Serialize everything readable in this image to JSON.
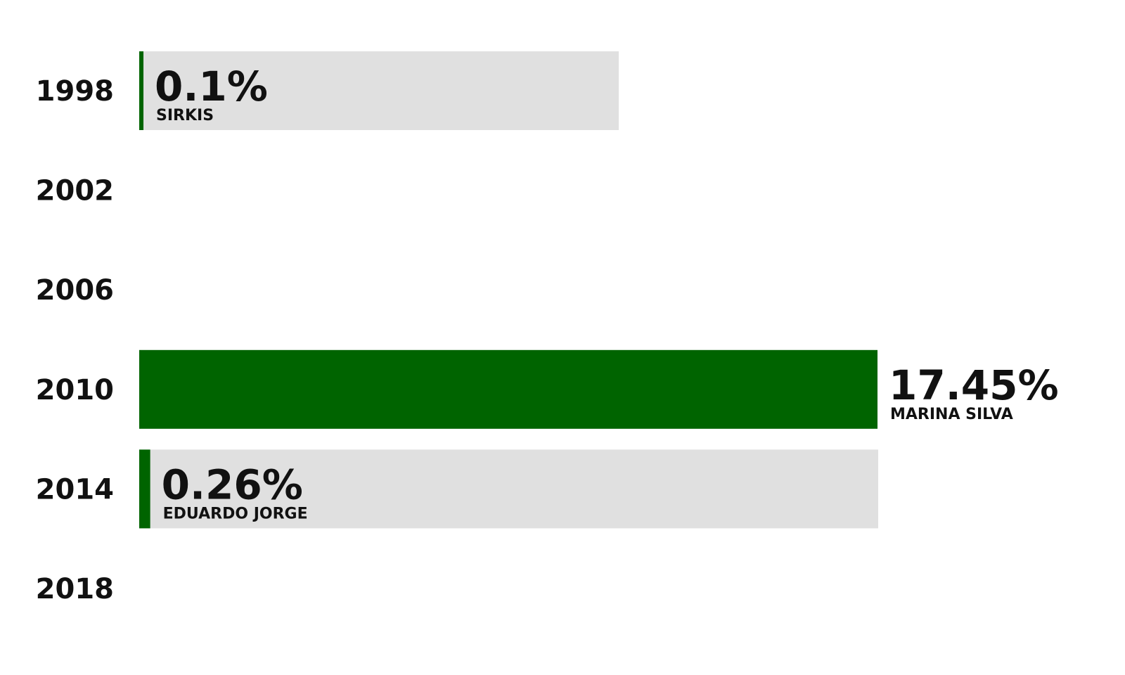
{
  "chart_data": {
    "type": "bar",
    "orientation": "horizontal",
    "categories": [
      "1998",
      "2002",
      "2006",
      "2010",
      "2014",
      "2018"
    ],
    "series": [
      {
        "values": [
          0.1,
          null,
          null,
          17.45,
          0.26,
          null
        ],
        "value_labels": [
          "0.1%",
          "",
          "",
          "17.45%",
          "0.26%",
          ""
        ],
        "candidate_labels": [
          "SIRKIS",
          "",
          "",
          "MARINA SILVA",
          "EDUARDO JORGE",
          ""
        ]
      }
    ],
    "title": "",
    "xlabel": "",
    "ylabel": "",
    "xlim": [
      0,
      100
    ],
    "grid": false,
    "legend": "none",
    "colors": {
      "bar": "#006400",
      "track": "#e0e0e0",
      "text": "#111111"
    }
  }
}
